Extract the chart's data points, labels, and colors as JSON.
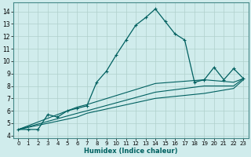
{
  "xlabel": "Humidex (Indice chaleur)",
  "xlim": [
    -0.5,
    23.5
  ],
  "ylim": [
    3.8,
    14.7
  ],
  "xticks": [
    0,
    1,
    2,
    3,
    4,
    5,
    6,
    7,
    8,
    9,
    10,
    11,
    12,
    13,
    14,
    15,
    16,
    17,
    18,
    19,
    20,
    21,
    22,
    23
  ],
  "yticks": [
    4,
    5,
    6,
    7,
    8,
    9,
    10,
    11,
    12,
    13,
    14
  ],
  "bg_color": "#d0ecec",
  "grid_color": "#b0d0cc",
  "line_color": "#006060",
  "series_main": {
    "x": [
      0,
      1,
      2,
      3,
      4,
      5,
      6,
      7,
      8,
      9,
      10,
      11,
      12,
      13,
      14,
      15,
      16,
      17,
      18,
      19,
      20,
      21,
      22,
      23
    ],
    "y": [
      4.5,
      4.5,
      4.5,
      5.7,
      5.5,
      6.0,
      6.2,
      6.4,
      8.3,
      9.2,
      10.5,
      11.7,
      12.9,
      13.5,
      14.2,
      13.2,
      12.2,
      11.7,
      8.3,
      8.5,
      9.5,
      8.5,
      9.4,
      8.6
    ]
  },
  "series_smooth": [
    {
      "x": [
        0,
        6,
        7,
        14,
        19,
        22,
        23
      ],
      "y": [
        4.5,
        6.3,
        6.5,
        8.2,
        8.5,
        8.3,
        8.6
      ]
    },
    {
      "x": [
        0,
        6,
        7,
        14,
        19,
        22,
        23
      ],
      "y": [
        4.5,
        5.8,
        6.0,
        7.5,
        8.0,
        8.0,
        8.6
      ]
    },
    {
      "x": [
        0,
        6,
        7,
        14,
        19,
        22,
        23
      ],
      "y": [
        4.5,
        5.5,
        5.8,
        7.0,
        7.4,
        7.8,
        8.5
      ]
    }
  ]
}
